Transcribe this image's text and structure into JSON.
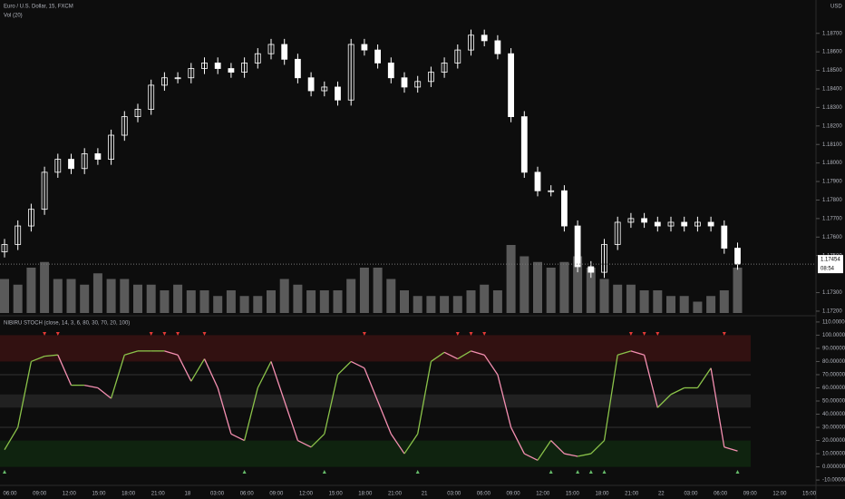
{
  "chart_data": [
    {
      "type": "candlestick",
      "title": "Euro / U.S. Dollar, 15, FXCM",
      "subtitle": "Vol (20)",
      "currency": "USD",
      "countdown": "08:54",
      "up_color": "#ffffff",
      "down_color": "#ffffff",
      "volume_color": "#5a5a5a",
      "ylim": [
        1.1719,
        1.1888
      ],
      "yticks": [
        {
          "value": 1.172,
          "label": "1.17200"
        },
        {
          "value": 1.173,
          "label": "1.17300"
        },
        {
          "value": 1.175,
          "label": "1.17500"
        },
        {
          "value": 1.176,
          "label": "1.17600"
        },
        {
          "value": 1.177,
          "label": "1.17700"
        },
        {
          "value": 1.178,
          "label": "1.17800"
        },
        {
          "value": 1.179,
          "label": "1.17900"
        },
        {
          "value": 1.18,
          "label": "1.18000"
        },
        {
          "value": 1.181,
          "label": "1.18100"
        },
        {
          "value": 1.182,
          "label": "1.18200"
        },
        {
          "value": 1.183,
          "label": "1.18300"
        },
        {
          "value": 1.184,
          "label": "1.18400"
        },
        {
          "value": 1.185,
          "label": "1.18500"
        },
        {
          "value": 1.186,
          "label": "1.18600"
        },
        {
          "value": 1.187,
          "label": "1.18700"
        }
      ],
      "open": [
        1.1752,
        1.1756,
        1.1766,
        1.1775,
        1.1795,
        1.1802,
        1.1797,
        1.1805,
        1.1802,
        1.1815,
        1.1825,
        1.1829,
        1.1842,
        1.1846,
        1.1846,
        1.1851,
        1.1854,
        1.1851,
        1.1849,
        1.1854,
        1.1859,
        1.1864,
        1.1856,
        1.1846,
        1.1839,
        1.1841,
        1.1834,
        1.1864,
        1.1861,
        1.1854,
        1.1846,
        1.1841,
        1.1844,
        1.1849,
        1.1854,
        1.1861,
        1.1869,
        1.1866,
        1.1859,
        1.1825,
        1.1795,
        1.1785,
        1.1785,
        1.1766,
        1.1744,
        1.1741,
        1.1756,
        1.1768,
        1.177,
        1.1768,
        1.1766,
        1.1768,
        1.1766,
        1.1768,
        1.1766,
        1.1754
      ],
      "high": [
        1.1759,
        1.1769,
        1.1778,
        1.1798,
        1.1805,
        1.1805,
        1.1808,
        1.1808,
        1.1818,
        1.1828,
        1.1832,
        1.1845,
        1.1849,
        1.1849,
        1.1854,
        1.1857,
        1.1857,
        1.1854,
        1.1857,
        1.1862,
        1.1867,
        1.1867,
        1.1859,
        1.1849,
        1.1844,
        1.1844,
        1.1867,
        1.1867,
        1.1864,
        1.1857,
        1.1849,
        1.1847,
        1.1852,
        1.1857,
        1.1864,
        1.1872,
        1.1872,
        1.1869,
        1.1862,
        1.1828,
        1.1798,
        1.1788,
        1.1788,
        1.1769,
        1.1747,
        1.1759,
        1.1771,
        1.1773,
        1.1773,
        1.1771,
        1.1771,
        1.1771,
        1.1771,
        1.1771,
        1.1769,
        1.1757
      ],
      "low": [
        1.1749,
        1.1753,
        1.1763,
        1.1772,
        1.1792,
        1.1794,
        1.1794,
        1.1799,
        1.1799,
        1.1812,
        1.1822,
        1.1826,
        1.1839,
        1.1843,
        1.1843,
        1.1848,
        1.1848,
        1.1846,
        1.1846,
        1.1851,
        1.1856,
        1.1853,
        1.1843,
        1.1836,
        1.1836,
        1.1831,
        1.1831,
        1.1858,
        1.1851,
        1.1843,
        1.1838,
        1.1838,
        1.1841,
        1.1846,
        1.1851,
        1.1858,
        1.1863,
        1.1856,
        1.1822,
        1.1792,
        1.1782,
        1.1782,
        1.1763,
        1.1741,
        1.1738,
        1.1738,
        1.1753,
        1.1765,
        1.1765,
        1.1763,
        1.1763,
        1.1763,
        1.1763,
        1.1763,
        1.1751,
        1.17424
      ],
      "close": [
        1.1756,
        1.1766,
        1.1775,
        1.1795,
        1.1802,
        1.1797,
        1.1805,
        1.1802,
        1.1815,
        1.1825,
        1.1829,
        1.1842,
        1.1846,
        1.1846,
        1.1851,
        1.1854,
        1.1851,
        1.1849,
        1.1854,
        1.1859,
        1.1864,
        1.1856,
        1.1846,
        1.1839,
        1.1841,
        1.1834,
        1.1864,
        1.1861,
        1.1854,
        1.1846,
        1.1841,
        1.1844,
        1.1849,
        1.1854,
        1.1861,
        1.1869,
        1.1866,
        1.1859,
        1.1825,
        1.1795,
        1.1785,
        1.1785,
        1.1766,
        1.1744,
        1.1741,
        1.1756,
        1.1768,
        1.177,
        1.1768,
        1.1766,
        1.1768,
        1.1766,
        1.1768,
        1.1766,
        1.1754,
        1.17454
      ],
      "volume": [
        30,
        25,
        40,
        45,
        30,
        30,
        25,
        35,
        30,
        30,
        25,
        25,
        20,
        25,
        20,
        20,
        15,
        20,
        15,
        15,
        20,
        30,
        25,
        20,
        20,
        20,
        30,
        40,
        40,
        30,
        20,
        15,
        15,
        15,
        15,
        20,
        25,
        20,
        60,
        50,
        45,
        40,
        45,
        50,
        40,
        30,
        25,
        25,
        20,
        20,
        15,
        15,
        10,
        15,
        20,
        40
      ]
    },
    {
      "type": "line",
      "title": "NIBIRU STOCH (close, 14, 3, 6, 80, 30, 70, 20, 100)",
      "rising_color": "#8bc34a",
      "falling_color": "#f48fb1",
      "ylim": [
        -12,
        112
      ],
      "yticks": [
        {
          "value": -10,
          "label": "-10.000000"
        },
        {
          "value": 0,
          "label": "0.000000"
        },
        {
          "value": 10,
          "label": "10.000000"
        },
        {
          "value": 20,
          "label": "20.000000"
        },
        {
          "value": 30,
          "label": "30.000000"
        },
        {
          "value": 40,
          "label": "40.000000"
        },
        {
          "value": 50,
          "label": "50.000000"
        },
        {
          "value": 60,
          "label": "60.000000"
        },
        {
          "value": 70,
          "label": "70.000000"
        },
        {
          "value": 80,
          "label": "80.000000"
        },
        {
          "value": 90,
          "label": "90.000000"
        },
        {
          "value": 100,
          "label": "100.000000"
        },
        {
          "value": 110,
          "label": "110.000000"
        }
      ],
      "overbought_zone": [
        80,
        100
      ],
      "oversold_zone": [
        0,
        20
      ],
      "mid_zone": [
        45,
        55
      ],
      "levels": [
        70,
        30
      ],
      "values": [
        13,
        30,
        80,
        84,
        85,
        62,
        62,
        60,
        52,
        85,
        88,
        88,
        88,
        85,
        65,
        82,
        60,
        25,
        20,
        60,
        80,
        50,
        20,
        15,
        25,
        70,
        80,
        75,
        50,
        25,
        10,
        25,
        80,
        87,
        82,
        88,
        85,
        70,
        30,
        10,
        5,
        20,
        10,
        8,
        10,
        20,
        85,
        88,
        85,
        45,
        55,
        60,
        60,
        75,
        15,
        12
      ],
      "sell_signals": [
        3,
        4,
        11,
        12,
        13,
        15,
        27,
        34,
        35,
        36,
        47,
        48,
        49,
        54
      ],
      "buy_signals": [
        0,
        18,
        24,
        31,
        41,
        43,
        44,
        45,
        55
      ],
      "time_labels": [
        "06:00",
        "09:00",
        "12:00",
        "15:00",
        "18:00",
        "21:00",
        "18",
        "03:00",
        "06:00",
        "09:00",
        "12:00",
        "15:00",
        "18:00",
        "21:00",
        "21",
        "03:00",
        "06:00",
        "09:00",
        "12:00",
        "15:00",
        "18:00",
        "21:00",
        "22",
        "03:00",
        "06:00",
        "09:00",
        "12:00",
        "15:00"
      ]
    }
  ]
}
